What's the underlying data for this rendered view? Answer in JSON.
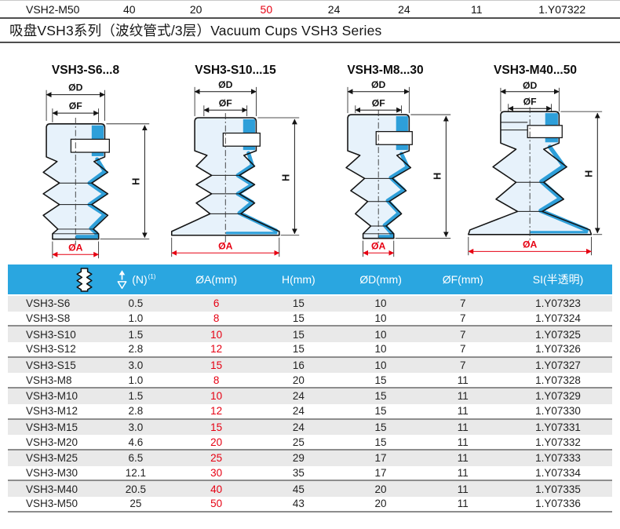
{
  "prev_row": {
    "model": "VSH2-M50",
    "values": [
      "40",
      "20",
      "50",
      "24",
      "24",
      "11",
      "1.Y07322"
    ],
    "red_value_index": 2
  },
  "title": "吸盘VSH3系列（波纹管式/3层）Vacuum Cups VSH3 Series",
  "diagrams": [
    {
      "title": "VSH3-S6...8",
      "dims": {
        "od": "ØD",
        "of": "ØF",
        "h": "H",
        "oa": "ØA"
      }
    },
    {
      "title": "VSH3-S10...15",
      "dims": {
        "od": "ØD",
        "of": "ØF",
        "h": "H",
        "oa": "ØA"
      }
    },
    {
      "title": "VSH3-M8...30",
      "dims": {
        "od": "ØD",
        "of": "ØF",
        "h": "H",
        "oa": "ØA"
      }
    },
    {
      "title": "VSH3-M40...50",
      "dims": {
        "od": "ØD",
        "of": "ØF",
        "h": "H",
        "oa": "ØA"
      }
    }
  ],
  "table": {
    "header": {
      "cup_icon": "vacuum-cup-icon",
      "force_icon": "lifting-force-icon",
      "force_unit": "(N)",
      "force_note": "(1)",
      "columns": [
        "ØA(mm)",
        "H(mm)",
        "ØD(mm)",
        "ØF(mm)",
        "SI(半透明)"
      ]
    },
    "rows": [
      [
        "VSH3-S6",
        "0.5",
        "6",
        "15",
        "10",
        "7",
        "1.Y07323"
      ],
      [
        "VSH3-S8",
        "1.0",
        "8",
        "15",
        "10",
        "7",
        "1.Y07324"
      ],
      [
        "VSH3-S10",
        "1.5",
        "10",
        "15",
        "10",
        "7",
        "1.Y07325"
      ],
      [
        "VSH3-S12",
        "2.8",
        "12",
        "15",
        "10",
        "7",
        "1.Y07326"
      ],
      [
        "VSH3-S15",
        "3.0",
        "15",
        "16",
        "10",
        "7",
        "1.Y07327"
      ],
      [
        "VSH3-M8",
        "1.0",
        "8",
        "20",
        "15",
        "11",
        "1.Y07328"
      ],
      [
        "VSH3-M10",
        "1.5",
        "10",
        "24",
        "15",
        "11",
        "1.Y07329"
      ],
      [
        "VSH3-M12",
        "2.8",
        "12",
        "24",
        "15",
        "11",
        "1.Y07330"
      ],
      [
        "VSH3-M15",
        "3.0",
        "15",
        "24",
        "15",
        "11",
        "1.Y07331"
      ],
      [
        "VSH3-M20",
        "4.6",
        "20",
        "25",
        "15",
        "11",
        "1.Y07332"
      ],
      [
        "VSH3-M25",
        "6.5",
        "25",
        "29",
        "17",
        "11",
        "1.Y07333"
      ],
      [
        "VSH3-M30",
        "12.1",
        "30",
        "35",
        "17",
        "11",
        "1.Y07334"
      ],
      [
        "VSH3-M40",
        "20.5",
        "40",
        "45",
        "20",
        "11",
        "1.Y07335"
      ],
      [
        "VSH3-M50",
        "25",
        "50",
        "43",
        "20",
        "11",
        "1.Y07336"
      ]
    ],
    "red_column_index": 2
  },
  "colors": {
    "header_blue": "#2aa6e0",
    "diagram_blue": "#2e9fd9",
    "value_red": "#e60012"
  }
}
